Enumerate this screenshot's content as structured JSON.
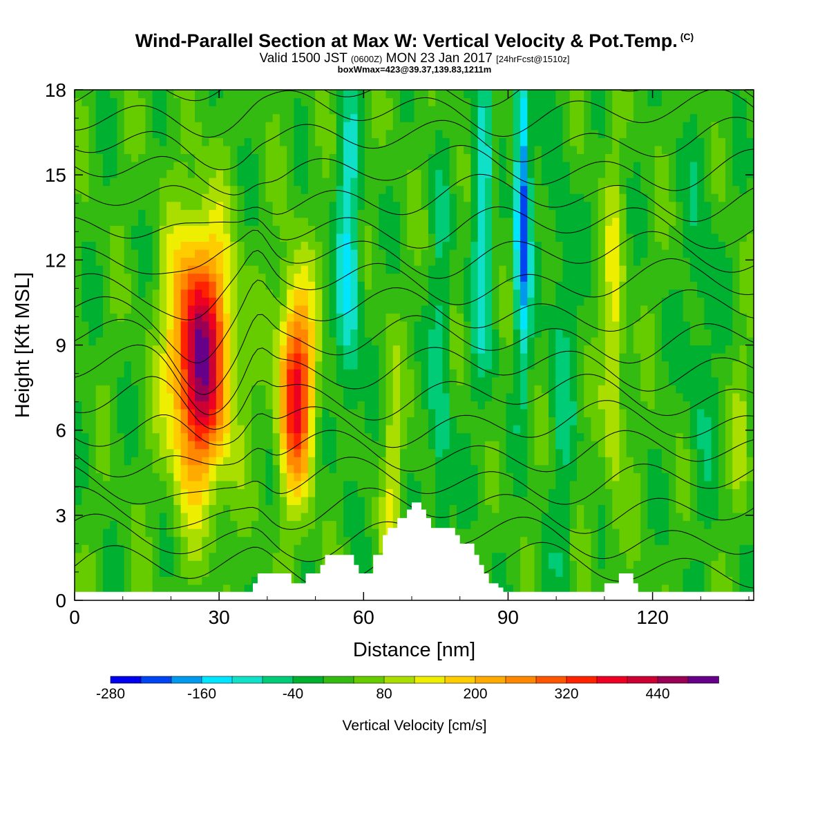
{
  "chart_data": {
    "type": "heatmap",
    "title": "Wind-Parallel Section at Max W: Vertical Velocity & Pot.Temp.",
    "title_mark": "(C)",
    "subtitle_a": "Valid 1500 JST",
    "subtitle_b": "(0600Z)",
    "subtitle_c": "MON 23 Jan 2017",
    "subtitle_d": "[24hrFcst@1510z]",
    "subtitle2": "boxWmax=423@39.37,139.83,1211m",
    "xlabel": "Distance [nm]",
    "ylabel": "Height [Kft MSL]",
    "xlim": [
      0,
      141
    ],
    "ylim": [
      0,
      18
    ],
    "xticks": [
      0,
      30,
      60,
      90,
      120
    ],
    "yticks": [
      0,
      3,
      6,
      9,
      12,
      15,
      18
    ],
    "colorbar": {
      "title": "Vertical Velocity [cm/s]",
      "levels": [
        -280,
        -240,
        -200,
        -160,
        -120,
        -80,
        -40,
        0,
        40,
        80,
        120,
        160,
        200,
        240,
        280,
        320,
        360,
        400,
        440,
        480,
        520
      ],
      "colors": [
        "#0000ee",
        "#0044f2",
        "#0099ee",
        "#00e5ff",
        "#11e0c8",
        "#00cc77",
        "#00b030",
        "#33bb11",
        "#66cc00",
        "#aadd00",
        "#eeee00",
        "#ffcc00",
        "#ffaa00",
        "#ff8800",
        "#ff5500",
        "#ff2200",
        "#ee0022",
        "#cc0033",
        "#990055",
        "#660088"
      ],
      "tick_labels": [
        -280,
        -160,
        -40,
        80,
        200,
        320,
        440
      ]
    },
    "updraft_cores": [
      {
        "x": 26,
        "z": 8.5,
        "max_w": 480
      },
      {
        "x": 46,
        "z": 7.5,
        "max_w": 380
      },
      {
        "x": 112,
        "z": 9.0,
        "max_w": 140
      }
    ],
    "downdraft_cores": [
      {
        "x": 57,
        "z": 12.0,
        "min_w": -120
      },
      {
        "x": 85,
        "z": 14.0,
        "min_w": -120
      },
      {
        "x": 93,
        "z": 14.0,
        "min_w": -240
      }
    ],
    "terrain_profile": {
      "x": [
        0,
        36,
        37,
        38,
        44,
        45,
        47,
        48,
        51,
        52,
        55,
        56,
        58,
        59,
        61,
        62,
        64,
        65,
        66,
        67,
        69,
        70,
        72,
        73,
        74,
        76,
        79,
        80,
        83,
        84,
        85,
        86,
        87,
        88,
        89,
        90,
        109,
        110,
        113,
        116,
        117,
        141
      ],
      "z": [
        0.3,
        0.3,
        0.6,
        0.95,
        0.95,
        0.6,
        0.6,
        0.95,
        1.25,
        1.6,
        1.6,
        1.6,
        1.25,
        0.95,
        0.95,
        1.6,
        2.3,
        2.55,
        2.55,
        2.9,
        3.2,
        3.45,
        3.2,
        2.9,
        2.55,
        2.55,
        2.3,
        2.0,
        1.6,
        1.25,
        0.95,
        0.6,
        0.6,
        0.45,
        0.3,
        0.3,
        0.3,
        0.6,
        0.95,
        0.6,
        0.3,
        0.3
      ]
    },
    "isentrope_count": 18
  }
}
